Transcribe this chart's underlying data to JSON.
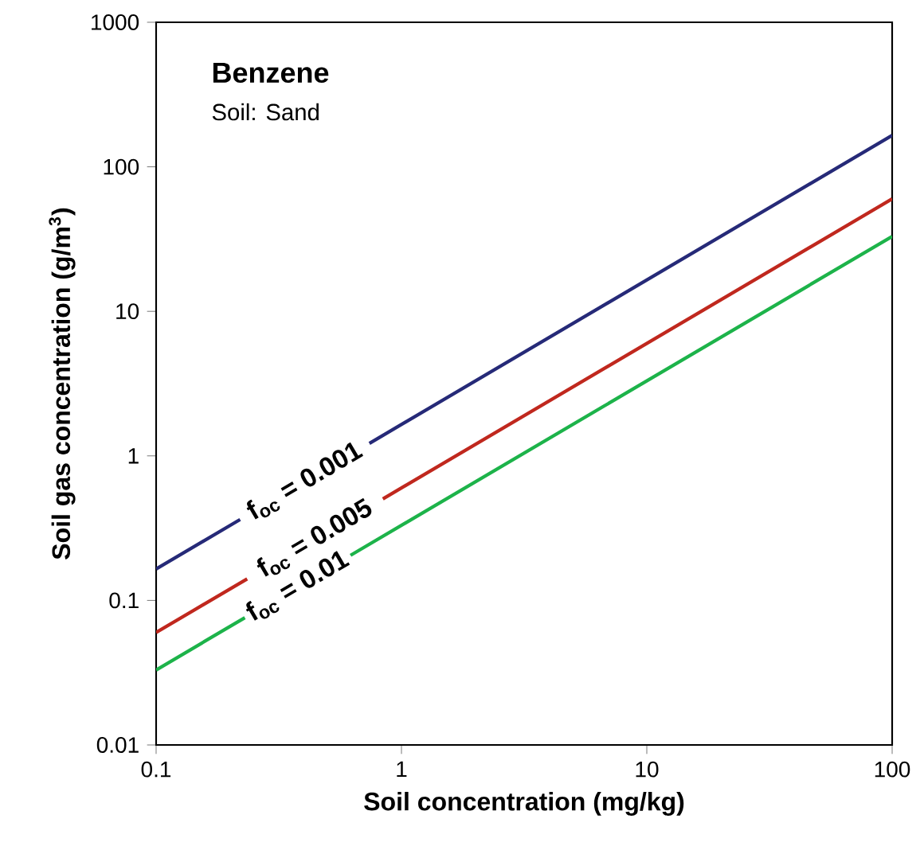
{
  "chart_data": {
    "type": "line",
    "title": "Benzene",
    "subtitle": "Soil: Sand",
    "xlabel": "Soil concentration (mg/kg)",
    "ylabel": "Soil gas concentration (g/m$^{3}$)",
    "log": "xy",
    "xlim": [
      0.1,
      100
    ],
    "ylim": [
      0.01,
      1000
    ],
    "xticks": [
      0.1,
      1,
      10,
      100
    ],
    "yticks": [
      0.01,
      0.1,
      1,
      10,
      100,
      1000
    ],
    "grid": false,
    "legend": false,
    "marker": "none",
    "line_style": "solid",
    "series": [
      {
        "name": "f$_{oc}$ = 0.001",
        "color": "#262a78",
        "x": [
          0.1,
          0.22,
          0.4,
          0.74,
          100
        ],
        "values": [
          0.165,
          0.363,
          null,
          1.22,
          165
        ]
      },
      {
        "name": "f$_{oc}$ = 0.005",
        "color": "#c0281e",
        "x": [
          0.1,
          0.235,
          0.44,
          0.84,
          100
        ],
        "values": [
          0.06,
          0.141,
          null,
          0.504,
          60
        ]
      },
      {
        "name": "f$_{oc}$ = 0.01",
        "color": "#1db34a",
        "x": [
          0.1,
          0.23,
          0.38,
          0.62,
          100
        ],
        "values": [
          0.033,
          0.076,
          null,
          0.205,
          33
        ]
      }
    ]
  }
}
